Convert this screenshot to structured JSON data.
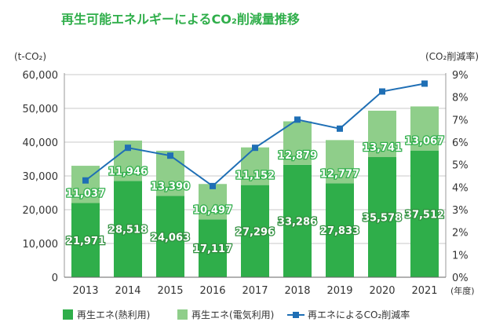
{
  "chart_data": {
    "type": "bar",
    "title": "再生可能エネルギーによるCO₂削減量推移",
    "ylabel_left": "(t-CO₂)",
    "ylabel_right": "(CO₂削減率)",
    "xlabel_unit": "(年度)",
    "categories": [
      "2013",
      "2014",
      "2015",
      "2016",
      "2017",
      "2018",
      "2019",
      "2020",
      "2021"
    ],
    "ylim_left": [
      0,
      60000
    ],
    "yticks_left": [
      "0",
      "10,000",
      "20,000",
      "30,000",
      "40,000",
      "50,000",
      "60,000"
    ],
    "ylim_right": [
      0,
      9
    ],
    "yticks_right": [
      "0%",
      "1%",
      "2%",
      "3%",
      "4%",
      "5%",
      "6%",
      "7%",
      "8%",
      "9%"
    ],
    "grid": true,
    "legend_position": "bottom",
    "series": [
      {
        "name": "再生エネ(熱利用)",
        "kind": "stacked-bar",
        "color": "#2fae4a",
        "values": [
          21971,
          28518,
          24063,
          17117,
          27296,
          33286,
          27833,
          35578,
          37512
        ],
        "labels": [
          "21,971",
          "28,518",
          "24,063",
          "17,117",
          "27,296",
          "33,286",
          "27,833",
          "35,578",
          "37,512"
        ]
      },
      {
        "name": "再生エネ(電気利用)",
        "kind": "stacked-bar",
        "color": "#8fce8a",
        "values": [
          11037,
          11946,
          13390,
          10497,
          11152,
          12879,
          12777,
          13741,
          13067
        ],
        "labels": [
          "11,037",
          "11,946",
          "13,390",
          "10,497",
          "11,152",
          "12,879",
          "12,777",
          "13,741",
          "13,067"
        ]
      },
      {
        "name": "再エネによるCO₂削減率",
        "kind": "line",
        "axis": "right",
        "color": "#1f6fb5",
        "values": [
          4.3,
          5.75,
          5.4,
          4.05,
          5.75,
          7.0,
          6.6,
          8.25,
          8.6
        ]
      }
    ]
  }
}
